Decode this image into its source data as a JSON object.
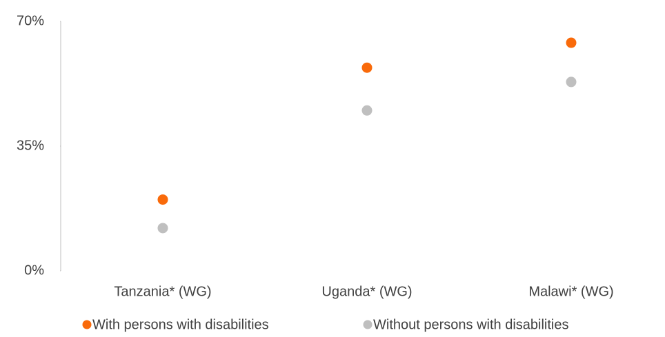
{
  "chart_data": {
    "type": "dot",
    "categories": [
      "Tanzania* (WG)",
      "Uganda* (WG)",
      "Malawi* (WG)"
    ],
    "series": [
      {
        "name": "With persons with disabilities",
        "color": "#f96a0a",
        "values": [
          20,
          57,
          64
        ]
      },
      {
        "name": "Without persons with disabilities",
        "color": "#bfbfbf",
        "values": [
          12,
          45,
          53
        ]
      }
    ],
    "ylim": [
      0,
      70
    ],
    "yticks": [
      {
        "value": 0,
        "label": "0%"
      },
      {
        "value": 35,
        "label": "35%"
      },
      {
        "value": 70,
        "label": "70%"
      }
    ],
    "legend": "bottom"
  }
}
